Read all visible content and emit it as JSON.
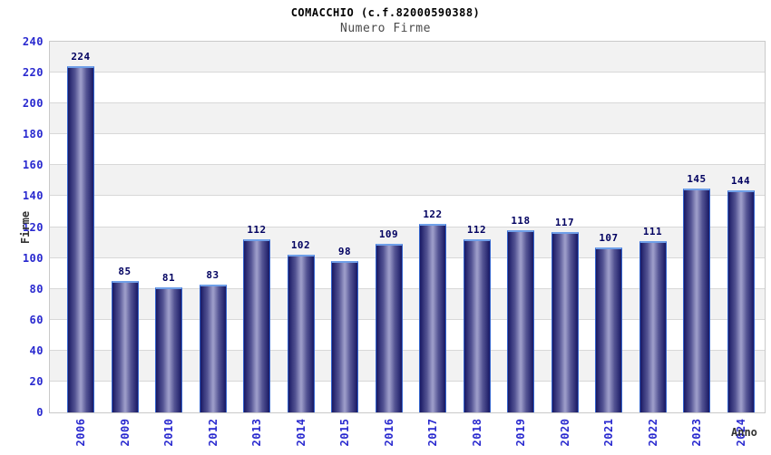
{
  "header": {
    "title": "COMACCHIO (c.f.82000590388)",
    "subtitle": "Numero Firme"
  },
  "chart_data": {
    "type": "bar",
    "title": "COMACCHIO (c.f.82000590388)",
    "subtitle": "Numero Firme",
    "xlabel": "Anno",
    "ylabel": "Firme",
    "categories": [
      "2006",
      "2009",
      "2010",
      "2012",
      "2013",
      "2014",
      "2015",
      "2016",
      "2017",
      "2018",
      "2019",
      "2020",
      "2021",
      "2022",
      "2023",
      "2024"
    ],
    "values": [
      224,
      85,
      81,
      83,
      112,
      102,
      98,
      109,
      122,
      112,
      118,
      117,
      107,
      111,
      145,
      144
    ],
    "ylim": [
      0,
      240
    ],
    "ytick_step": 20,
    "grid": true,
    "legend": "none",
    "colors": {
      "bar_edge": "#3565cd",
      "bar_top_edge": "#6f9fe8",
      "bar_dark": "#191964",
      "bar_mid": "#555594",
      "bar_light": "#9b9bc8",
      "tick_label": "#2929cf",
      "value_label": "#000060",
      "band_gray": "#f2f2f2",
      "band_white": "#ffffff",
      "grid_line": "#d8d8d8",
      "plot_border": "#c9c9c9",
      "axis_title": "#333333",
      "title_color": "#000000",
      "subtitle_color": "#4a4a4a"
    }
  }
}
